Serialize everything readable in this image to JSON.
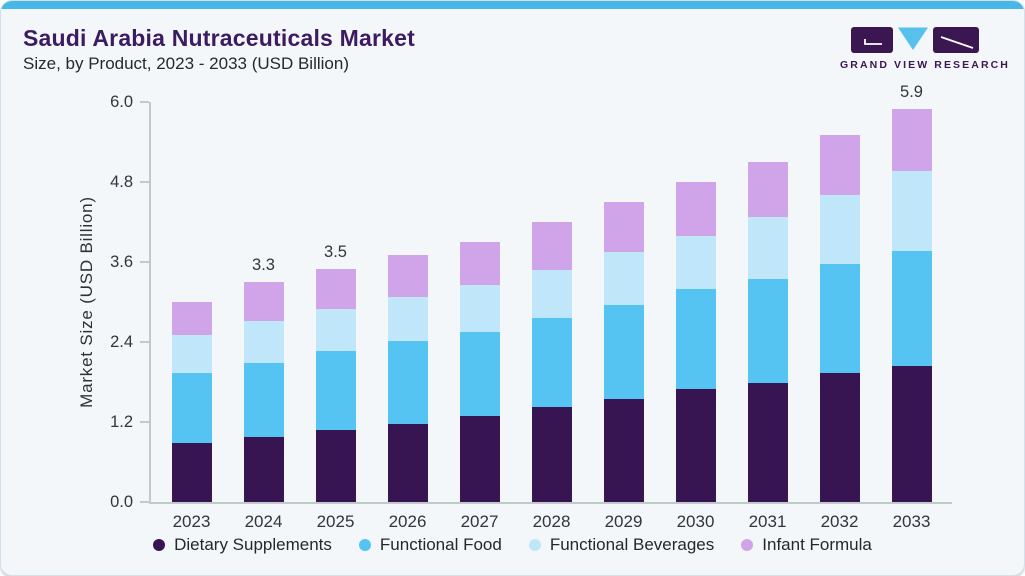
{
  "header": {
    "title": "Saudi Arabia Nutraceuticals Market",
    "subtitle": "Size, by Product, 2023 - 2033 (USD Billion)",
    "logo_text": "GRAND VIEW RESEARCH"
  },
  "colors": {
    "accent_bar": "#47b7e8",
    "card_background": "#f3f7fa",
    "title_purple": "#3c1b61",
    "logo_purple": "#3b1752",
    "logo_triangle_blue": "#55c1ec",
    "axis_gray": "#c3c8cd"
  },
  "chart_data": {
    "type": "bar",
    "stacked": true,
    "title": "Saudi Arabia Nutraceuticals Market Size, by Product, 2023 - 2033 (USD Billion)",
    "xlabel": "",
    "ylabel": "Market Size (USD Billion)",
    "ylim": [
      0,
      6.0
    ],
    "yticks": [
      "0.0",
      "1.2",
      "2.4",
      "3.6",
      "4.8",
      "6.0"
    ],
    "grid": false,
    "legend_position": "bottom",
    "categories": [
      "2023",
      "2024",
      "2025",
      "2026",
      "2027",
      "2028",
      "2029",
      "2030",
      "2031",
      "2032",
      "2033"
    ],
    "series": [
      {
        "name": "Dietary Supplements",
        "color": "#371452",
        "values": [
          0.88,
          0.98,
          1.08,
          1.17,
          1.29,
          1.42,
          1.55,
          1.69,
          1.79,
          1.93,
          2.04
        ]
      },
      {
        "name": "Functional Food",
        "color": "#55c4f2",
        "values": [
          1.05,
          1.11,
          1.18,
          1.25,
          1.26,
          1.34,
          1.41,
          1.5,
          1.56,
          1.64,
          1.73
        ]
      },
      {
        "name": "Functional Beverages",
        "color": "#bfe6f9",
        "values": [
          0.57,
          0.62,
          0.63,
          0.65,
          0.7,
          0.72,
          0.79,
          0.8,
          0.92,
          1.04,
          1.2
        ]
      },
      {
        "name": "Infant Formula",
        "color": "#d0a4e9",
        "values": [
          0.5,
          0.59,
          0.61,
          0.63,
          0.65,
          0.72,
          0.75,
          0.81,
          0.83,
          0.89,
          0.93
        ]
      }
    ],
    "totals": [
      3.0,
      3.3,
      3.5,
      3.7,
      3.9,
      4.2,
      4.5,
      4.8,
      5.1,
      5.5,
      5.9
    ],
    "bar_labels": [
      "",
      "3.3",
      "3.5",
      "",
      "",
      "",
      "",
      "",
      "",
      "",
      "5.9"
    ]
  }
}
